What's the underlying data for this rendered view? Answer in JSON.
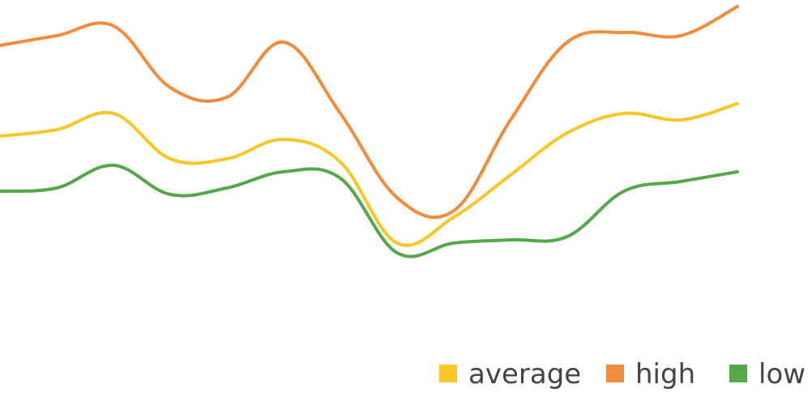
{
  "chart_data": {
    "type": "line",
    "x": [
      0,
      1,
      2,
      3,
      4,
      5,
      6,
      7,
      8,
      9,
      10,
      11,
      12,
      13
    ],
    "xlim": [
      0,
      13
    ],
    "ylim": [
      0,
      100
    ],
    "grid": false,
    "legend": "bottom-right",
    "series": [
      {
        "name": "average",
        "color": "#F9C627",
        "values": [
          63,
          65,
          70,
          56,
          56,
          62,
          55,
          30,
          38,
          51,
          64,
          70,
          68,
          73
        ]
      },
      {
        "name": "high",
        "color": "#F28C3A",
        "values": [
          91,
          94,
          97,
          78,
          75,
          92,
          70,
          44,
          40,
          68,
          92,
          95,
          94,
          103
        ]
      },
      {
        "name": "low",
        "color": "#55A84A",
        "values": [
          46,
          47,
          54,
          45,
          47,
          52,
          50,
          27,
          30,
          31,
          32,
          46,
          49,
          52
        ]
      }
    ]
  }
}
